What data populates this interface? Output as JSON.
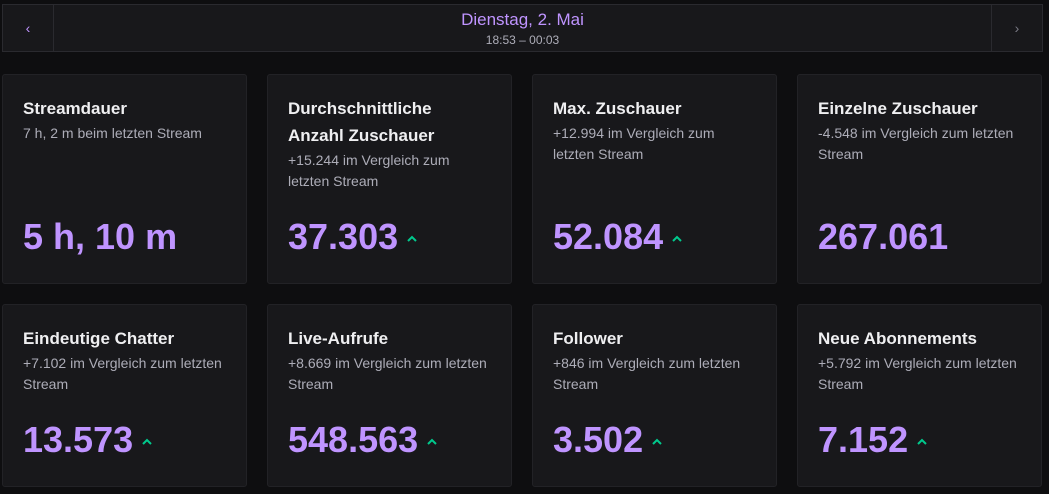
{
  "header": {
    "date": "Dienstag, 2. Mai",
    "time_range": "18:53 – 00:03",
    "prev_icon": "chevron-left-icon",
    "next_icon": "chevron-right-icon"
  },
  "colors": {
    "accent": "#bf94ff",
    "trend_up": "#00c98d",
    "card_bg": "#18181b",
    "page_bg": "#0e0e10"
  },
  "cards": [
    {
      "title": "Streamdauer",
      "subtitle": "7 h, 2 m beim letzten Stream",
      "value": "5 h, 10 m",
      "trend": "none"
    },
    {
      "title": "Durchschnittliche Anzahl Zuschauer",
      "subtitle": "+15.244 im Vergleich zum letzten Stream",
      "value": "37.303",
      "trend": "up"
    },
    {
      "title": "Max. Zuschauer",
      "subtitle": "+12.994 im Vergleich zum letzten Stream",
      "value": "52.084",
      "trend": "up"
    },
    {
      "title": "Einzelne Zuschauer",
      "subtitle": "-4.548 im Vergleich zum letzten Stream",
      "value": "267.061",
      "trend": "none"
    },
    {
      "title": "Eindeutige Chatter",
      "subtitle": "+7.102 im Vergleich zum letzten Stream",
      "value": "13.573",
      "trend": "up"
    },
    {
      "title": "Live-Aufrufe",
      "subtitle": "+8.669 im Vergleich zum letzten Stream",
      "value": "548.563",
      "trend": "up"
    },
    {
      "title": "Follower",
      "subtitle": "+846 im Vergleich zum letzten Stream",
      "value": "3.502",
      "trend": "up"
    },
    {
      "title": "Neue Abonnements",
      "subtitle": "+5.792 im Vergleich zum letzten Stream",
      "value": "7.152",
      "trend": "up"
    }
  ]
}
